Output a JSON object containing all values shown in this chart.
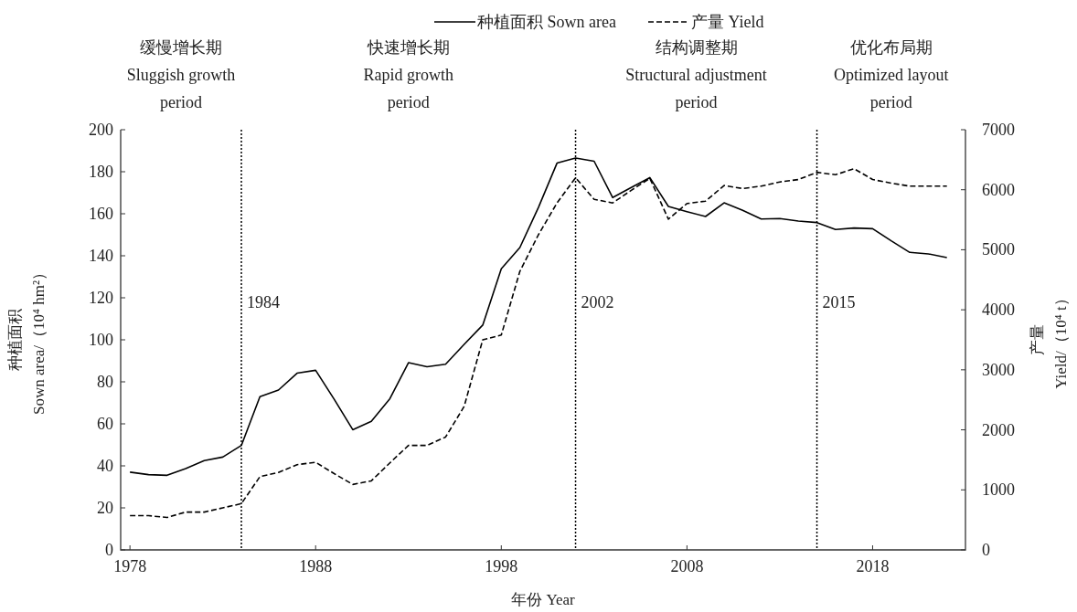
{
  "chart_data": {
    "type": "line",
    "xlabel": "年份 Year",
    "ylabel": "种植面积\nSown area/（10⁴ hm²）",
    "y2label": "产量\nYield/（10⁴ t）",
    "x": [
      1978,
      1979,
      1980,
      1981,
      1982,
      1983,
      1984,
      1985,
      1986,
      1987,
      1988,
      1989,
      1990,
      1991,
      1992,
      1993,
      1994,
      1995,
      1996,
      1997,
      1998,
      1999,
      2000,
      2001,
      2002,
      2003,
      2004,
      2005,
      2006,
      2007,
      2008,
      2009,
      2010,
      2011,
      2012,
      2013,
      2014,
      2015,
      2016,
      2017,
      2018,
      2019,
      2020,
      2021,
      2022
    ],
    "series": [
      {
        "name": "种植面积 Sown area",
        "color": "#000000",
        "line_style": "solid",
        "values": [
          37.0,
          35.8,
          35.5,
          38.7,
          42.5,
          44.2,
          49.7,
          72.9,
          76.1,
          84.1,
          85.5,
          71.7,
          57.2,
          61.2,
          72.0,
          89.1,
          87.2,
          88.4,
          97.8,
          107.0,
          133.8,
          143.9,
          163,
          184.1,
          186.5,
          185,
          167.7,
          172.5,
          177.2,
          163.5,
          161,
          158.7,
          165.2,
          161.6,
          157.5,
          157.7,
          156.5,
          155.8,
          152.5,
          153.2,
          152.9,
          147.1,
          141.6,
          140.9,
          139.1
        ]
      },
      {
        "name": "产量 Yield",
        "color": "#000000",
        "line_style": "dashed",
        "axis": "y2",
        "values": [
          570,
          570,
          540,
          630,
          630,
          700,
          770,
          1220,
          1290,
          1420,
          1460,
          1270,
          1090,
          1150,
          1450,
          1740,
          1740,
          1880,
          2390,
          3500,
          3580,
          4640,
          5250,
          5780,
          6200,
          5840,
          5780,
          5990,
          6190,
          5510,
          5770,
          5810,
          6070,
          6020,
          6060,
          6130,
          6170,
          6290,
          6250,
          6350,
          6170,
          6110,
          6060,
          6060,
          6060
        ]
      }
    ],
    "xlim": [
      1977.5,
      2023
    ],
    "xticks": [
      1978,
      1988,
      1998,
      2008,
      2018
    ],
    "ylim": [
      0,
      200
    ],
    "yticks": [
      0,
      20,
      40,
      60,
      80,
      100,
      120,
      140,
      160,
      180,
      200
    ],
    "y2lim": [
      0,
      7000
    ],
    "y2ticks": [
      0,
      1000,
      2000,
      3000,
      4000,
      5000,
      6000,
      7000
    ],
    "ref_lines": [
      {
        "axis": "x",
        "value": 1984,
        "label": "1984",
        "line_style": "dotted"
      },
      {
        "axis": "x",
        "value": 2002,
        "label": "2002",
        "line_style": "dotted"
      },
      {
        "axis": "x",
        "value": 2015,
        "label": "2015",
        "line_style": "dotted"
      }
    ],
    "annotations": [
      "缓慢增长期\nSluggish growth\nperiod",
      "快速增长期\nRapid growth\nperiod",
      "结构调整期\nStructural adjustment\nperiod",
      "优化布局期\nOptimized layout\nperiod"
    ],
    "legend": "top"
  }
}
